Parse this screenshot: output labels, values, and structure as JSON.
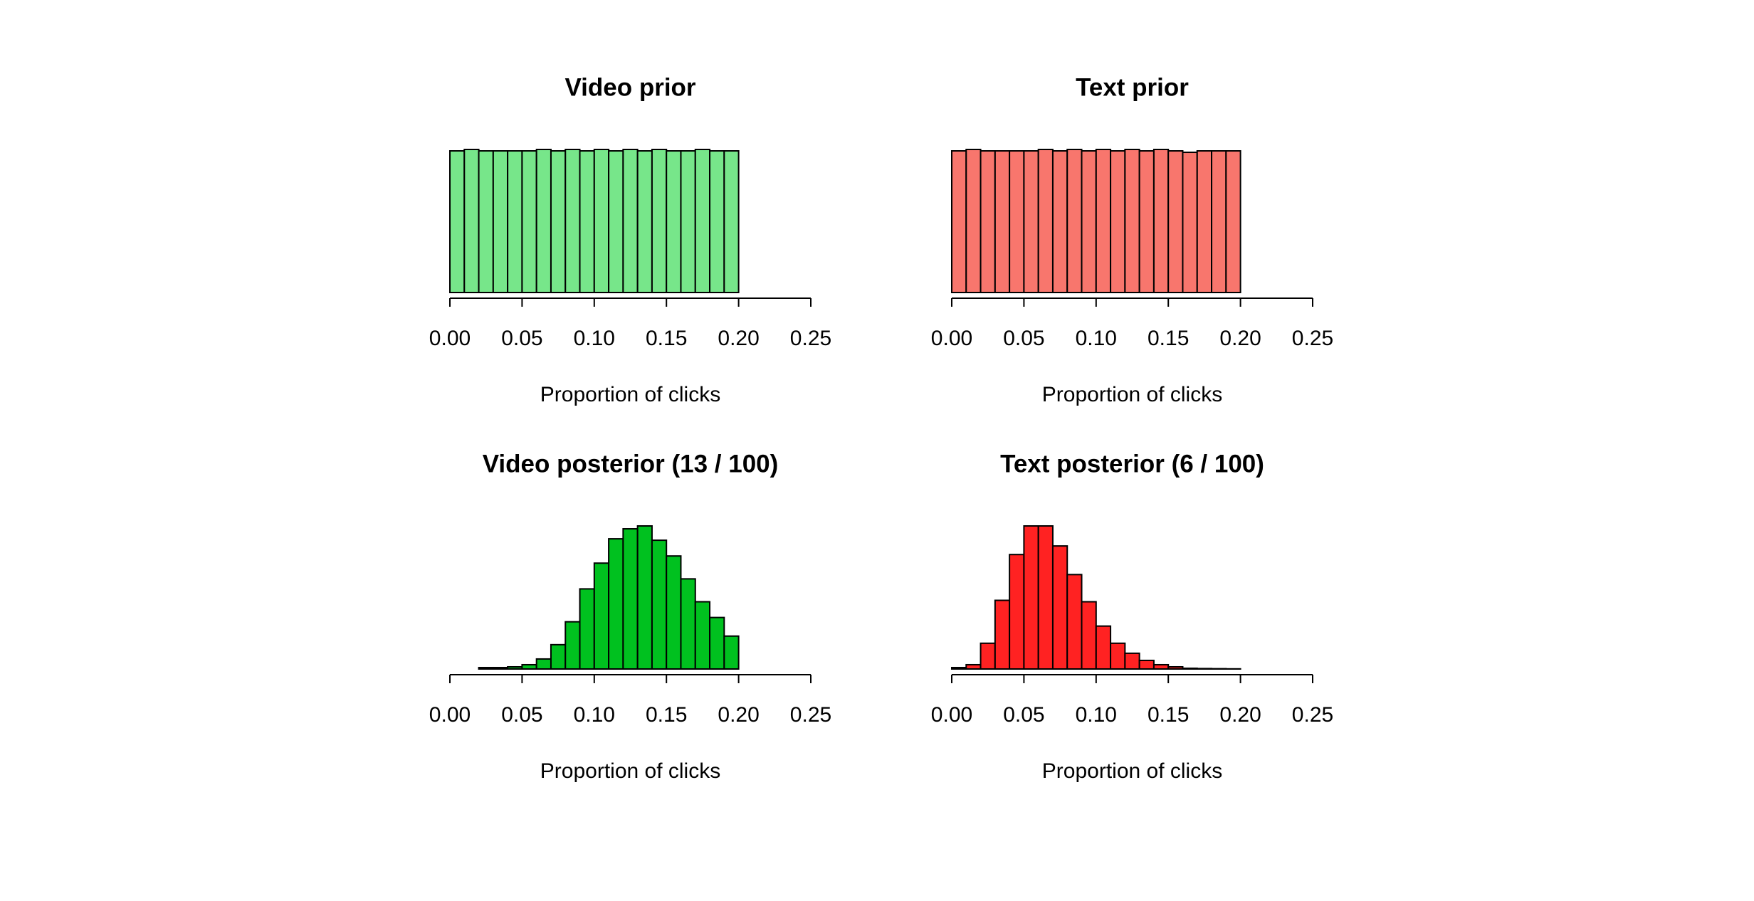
{
  "chart_data": [
    {
      "type": "histogram",
      "title": "Video prior",
      "x_label": "Proportion of clicks",
      "color": "#77e68a",
      "bins": [
        0,
        0.01,
        0.02,
        0.03,
        0.04,
        0.05,
        0.06,
        0.07,
        0.08,
        0.09,
        0.1,
        0.11,
        0.12,
        0.13,
        0.14,
        0.15,
        0.16,
        0.17,
        0.18,
        0.19,
        0.2
      ],
      "values": [
        99,
        100,
        99,
        99,
        99,
        99,
        100,
        99,
        100,
        99,
        100,
        99,
        100,
        99,
        100,
        99,
        99,
        100,
        99,
        99
      ],
      "xlim": [
        0,
        0.25
      ],
      "ylim": [
        0,
        100
      ],
      "xticks": [
        {
          "value": 0,
          "label": "0.00"
        },
        0.05,
        {
          "value": 0.1,
          "label": "0.10"
        },
        0.15,
        {
          "value": 0.2,
          "label": "0.20"
        },
        0.25
      ]
    },
    {
      "type": "histogram",
      "title": "Text prior",
      "x_label": "Proportion of clicks",
      "color": "#f8766d",
      "bins": [
        0,
        0.01,
        0.02,
        0.03,
        0.04,
        0.05,
        0.06,
        0.07,
        0.08,
        0.09,
        0.1,
        0.11,
        0.12,
        0.13,
        0.14,
        0.15,
        0.16,
        0.17,
        0.18,
        0.19,
        0.2
      ],
      "values": [
        99,
        100,
        99,
        99,
        99,
        99,
        100,
        99,
        100,
        99,
        100,
        99,
        100,
        99,
        100,
        99,
        98,
        99,
        99,
        99
      ],
      "xlim": [
        0,
        0.25
      ],
      "ylim": [
        0,
        100
      ],
      "xticks": [
        {
          "value": 0,
          "label": "0.00"
        },
        0.05,
        {
          "value": 0.1,
          "label": "0.10"
        },
        0.15,
        {
          "value": 0.2,
          "label": "0.20"
        },
        0.25
      ]
    },
    {
      "type": "histogram",
      "title": "Video posterior (13 / 100)",
      "x_label": "Proportion of clicks",
      "color": "#00c11f",
      "bins": [
        0.02,
        0.03,
        0.04,
        0.05,
        0.06,
        0.07,
        0.08,
        0.09,
        0.1,
        0.11,
        0.12,
        0.13,
        0.14,
        0.15,
        0.16,
        0.17,
        0.18,
        0.19,
        0.2
      ],
      "values": [
        1,
        1,
        1.5,
        3,
        7,
        17,
        33,
        56,
        74,
        91,
        98,
        100,
        90,
        79,
        63,
        47,
        36,
        23
      ],
      "xlim": [
        0,
        0.25
      ],
      "ylim": [
        0,
        100
      ],
      "xticks": [
        {
          "value": 0,
          "label": "0.00"
        },
        0.05,
        {
          "value": 0.1,
          "label": "0.10"
        },
        0.15,
        {
          "value": 0.2,
          "label": "0.20"
        },
        0.25
      ]
    },
    {
      "type": "histogram",
      "title": "Text posterior (6 / 100)",
      "x_label": "Proportion of clicks",
      "color": "#ff2222",
      "bins": [
        0,
        0.01,
        0.02,
        0.03,
        0.04,
        0.05,
        0.06,
        0.07,
        0.08,
        0.09,
        0.1,
        0.11,
        0.12,
        0.13,
        0.14,
        0.15,
        0.16,
        0.17,
        0.18,
        0.19,
        0.2
      ],
      "values": [
        1,
        3,
        18,
        48,
        80,
        100,
        100,
        86,
        66,
        47,
        30,
        18,
        11,
        6,
        3,
        1.5,
        0.5,
        0.3,
        0.2,
        0.1
      ],
      "xlim": [
        0,
        0.25
      ],
      "ylim": [
        0,
        100
      ],
      "xticks": [
        {
          "value": 0,
          "label": "0.00"
        },
        0.05,
        {
          "value": 0.1,
          "label": "0.10"
        },
        0.15,
        {
          "value": 0.2,
          "label": "0.20"
        },
        0.25
      ]
    }
  ]
}
